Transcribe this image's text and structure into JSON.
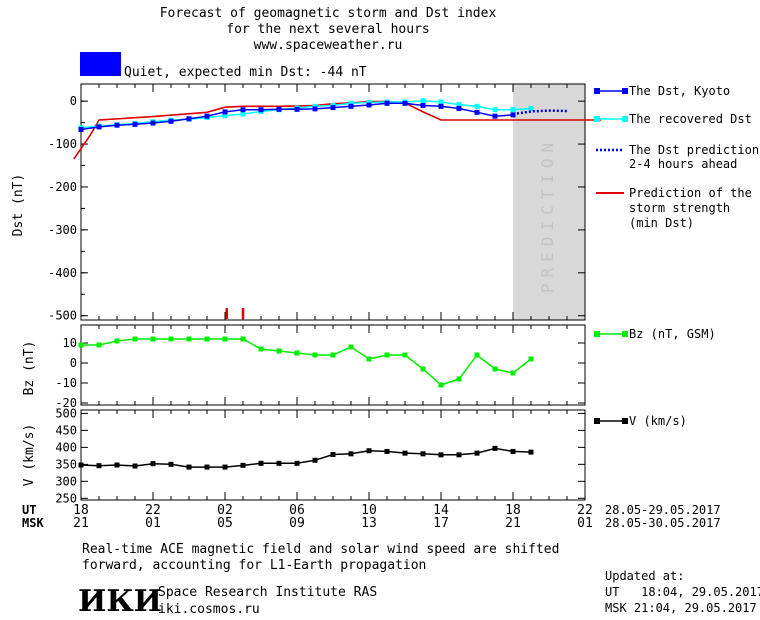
{
  "header": {
    "title_line1": "Forecast of geomagnetic storm and Dst index",
    "title_line2": "for the next several hours",
    "title_line3": "www.spaceweather.ru",
    "status_text": "Quiet, expected min Dst: -44 nT",
    "status_color": "#0000ff"
  },
  "colors": {
    "dst_kyoto": "#0000ff",
    "recovered": "#00ffff",
    "prediction": "#0000dd",
    "storm": "#dd0000",
    "bz": "#00ee00",
    "v": "#000000",
    "prediction_band": "#d8d8d8"
  },
  "legend": {
    "dst_kyoto": "The Dst, Kyoto",
    "recovered": "The recovered Dst",
    "prediction_l1": "The Dst prediction",
    "prediction_l2": "2-4 hours ahead",
    "storm_l1": "Prediction of the",
    "storm_l2": "storm strength",
    "storm_l3": "(min Dst)",
    "bz": "Bz (nT, GSM)",
    "v": "V (km/s)"
  },
  "prediction_label": "PREDICTION",
  "time_axis": {
    "ut_label": "UT",
    "msk_label": "MSK",
    "ut_ticks": [
      "18",
      "22",
      "02",
      "06",
      "10",
      "14",
      "18",
      "22"
    ],
    "msk_ticks": [
      "21",
      "01",
      "05",
      "09",
      "13",
      "17",
      "21",
      "01"
    ],
    "ut_range": "28.05-29.05.2017",
    "msk_range": "28.05-30.05.2017"
  },
  "footer": {
    "note_line1": "Real-time ACE magnetic field and solar wind speed are shifted",
    "note_line2": "forward, accounting for L1-Earth propagation",
    "logo_text": "ИКИ",
    "institute": "Space Research Institute RAS",
    "website": "iki.cosmos.ru",
    "updated_label": "Updated at:",
    "updated_ut": "UT   18:04, 29.05.2017",
    "updated_msk": "MSK 21:04, 29.05.2017"
  },
  "chart_data": [
    {
      "type": "line",
      "title": "Forecast of geomagnetic storm and Dst index",
      "ylabel": "Dst (nT)",
      "xlim": [
        0,
        28
      ],
      "ylim": [
        -510,
        40
      ],
      "yticks": [
        0,
        -100,
        -200,
        -300,
        -400,
        -500
      ],
      "ytick_labels": [
        "0",
        "-100",
        "-200",
        "-300",
        "-400",
        "-500"
      ],
      "prediction_band": [
        24,
        28
      ],
      "markers_red": [
        8.1,
        9.0
      ],
      "series": [
        {
          "name": "The Dst, Kyoto",
          "x": [
            0,
            1,
            2,
            3,
            4,
            5,
            6,
            7,
            8,
            9,
            10,
            11,
            12,
            13,
            14,
            15,
            16,
            17,
            18,
            19,
            20,
            21,
            22,
            23,
            24
          ],
          "y": [
            -66,
            -60,
            -56,
            -54,
            -51,
            -47,
            -41,
            -35,
            -25,
            -20,
            -20,
            -19,
            -19,
            -18,
            -15,
            -12,
            -9,
            -5,
            -5,
            -10,
            -12,
            -17,
            -26,
            -35,
            -32
          ]
        },
        {
          "name": "The recovered Dst",
          "x": [
            0,
            1,
            2,
            3,
            4,
            5,
            6,
            7,
            8,
            9,
            10,
            11,
            12,
            13,
            14,
            15,
            16,
            17,
            18,
            19,
            20,
            21,
            22,
            23,
            24,
            25
          ],
          "y": [
            -62,
            -58,
            -55,
            -52,
            -48,
            -44,
            -42,
            -38,
            -34,
            -30,
            -24,
            -20,
            -16,
            -12,
            -10,
            -5,
            -3,
            -2,
            -2,
            1,
            -2,
            -8,
            -12,
            -20,
            -20,
            -17
          ]
        },
        {
          "name": "The Dst prediction 2-4 hours ahead",
          "x": [
            24,
            25,
            26,
            27
          ],
          "y": [
            -30,
            -24,
            -22,
            -23
          ]
        },
        {
          "name": "Prediction of the storm strength (min Dst)",
          "x": [
            -0.4,
            0.5,
            1,
            4,
            7,
            8,
            9,
            10,
            11,
            12,
            13,
            14,
            15,
            16,
            17,
            18,
            19,
            20,
            21,
            22,
            23,
            24,
            25,
            26,
            27,
            28,
            28.9
          ],
          "y": [
            -135,
            -80,
            -44,
            -36,
            -26,
            -14,
            -12,
            -12,
            -12,
            -11,
            -10,
            -6,
            -4,
            -1,
            -1,
            -4,
            -25,
            -44,
            -44,
            -44,
            -44,
            -44,
            -44,
            -44,
            -44,
            -44,
            -44
          ]
        }
      ]
    },
    {
      "type": "line",
      "ylabel": "Bz (nT)",
      "xlim": [
        0,
        28
      ],
      "ylim": [
        -21,
        19
      ],
      "yticks": [
        10,
        0,
        -10,
        -20
      ],
      "ytick_labels": [
        "10",
        "0",
        "-10",
        "-20"
      ],
      "series": [
        {
          "name": "Bz (nT, GSM)",
          "x": [
            0,
            1,
            2,
            3,
            4,
            5,
            6,
            7,
            8,
            9,
            10,
            11,
            12,
            13,
            14,
            15,
            16,
            17,
            18,
            19,
            20,
            21,
            22,
            23,
            24,
            25
          ],
          "y": [
            9,
            9,
            11,
            12,
            12,
            12,
            12,
            12,
            12,
            12,
            7,
            6,
            5,
            4,
            4,
            8,
            2,
            4,
            4,
            -3,
            -11,
            -8,
            4,
            -3,
            -5,
            2
          ]
        }
      ]
    },
    {
      "type": "line",
      "ylabel": "V (km/s)",
      "xlim": [
        0,
        28
      ],
      "ylim": [
        245,
        510
      ],
      "yticks": [
        500,
        450,
        400,
        350,
        300,
        250
      ],
      "ytick_labels": [
        "500",
        "450",
        "400",
        "350",
        "300",
        "250"
      ],
      "series": [
        {
          "name": "V (km/s)",
          "x": [
            0,
            1,
            2,
            3,
            4,
            5,
            6,
            7,
            8,
            9,
            10,
            11,
            12,
            13,
            14,
            15,
            16,
            17,
            18,
            19,
            20,
            21,
            22,
            23,
            24,
            25
          ],
          "y": [
            348,
            346,
            348,
            345,
            352,
            350,
            342,
            342,
            342,
            347,
            353,
            353,
            353,
            362,
            379,
            381,
            390,
            388,
            383,
            381,
            378,
            378,
            383,
            397,
            388,
            386
          ]
        }
      ]
    }
  ]
}
